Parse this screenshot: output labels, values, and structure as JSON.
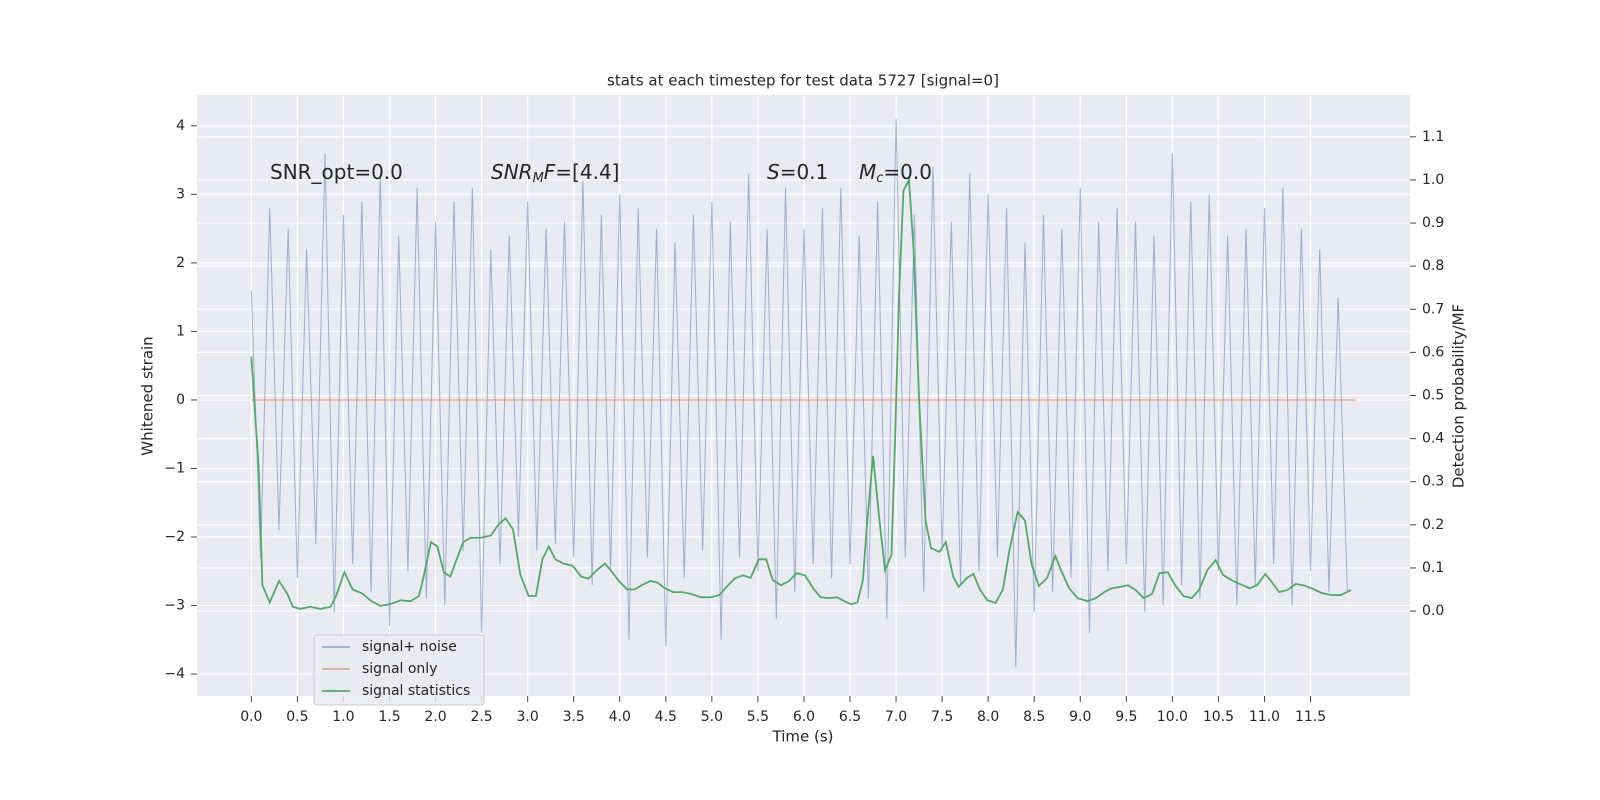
{
  "chart_data": {
    "type": "line",
    "title": "stats at each timestep for test data 5727 [signal=0]",
    "xlabel": "Time (s)",
    "ylabel": "Whitened strain",
    "y2label": "Detection probability/MF",
    "xlim": [
      -0.59,
      12.58
    ],
    "ylim": [
      -4.32,
      4.45
    ],
    "y2lim": [
      -0.197,
      1.197
    ],
    "xticks": [
      {
        "value": 0,
        "label": "0.0"
      },
      0.5,
      {
        "value": 1,
        "label": "1.0"
      },
      1.5,
      {
        "value": 2,
        "label": "2.0"
      },
      2.5,
      {
        "value": 3,
        "label": "3.0"
      },
      3.5,
      {
        "value": 4,
        "label": "4.0"
      },
      4.5,
      {
        "value": 5,
        "label": "5.0"
      },
      5.5,
      {
        "value": 6,
        "label": "6.0"
      },
      6.5,
      {
        "value": 7,
        "label": "7.0"
      },
      7.5,
      {
        "value": 8,
        "label": "8.0"
      },
      8.5,
      {
        "value": 9,
        "label": "9.0"
      },
      9.5,
      {
        "value": 10,
        "label": "10.0"
      },
      10.5,
      {
        "value": 11,
        "label": "11.0"
      },
      11.5
    ],
    "yticks": [
      {
        "value": -4,
        "label": "−4"
      },
      {
        "value": -3,
        "label": "−3"
      },
      {
        "value": -2,
        "label": "−2"
      },
      {
        "value": -1,
        "label": "−1"
      },
      0,
      1,
      2,
      3,
      4
    ],
    "y2ticks": [
      {
        "value": 0,
        "label": "0.0"
      },
      0.1,
      0.2,
      0.3,
      0.4,
      0.5,
      0.6,
      0.7,
      0.8,
      0.9,
      {
        "value": 1,
        "label": "1.0"
      },
      1.1
    ],
    "grid": true,
    "legend": "lower left",
    "annotations": [
      [
        "SNR_opt=0.0"
      ],
      [
        "SNR",
        "M",
        "F",
        "=[4.4]"
      ],
      [
        "S",
        "=0.1"
      ],
      [
        "M",
        "c",
        "=0.0"
      ]
    ],
    "series": [
      {
        "name": "signal+ noise",
        "color": "#4c72b0",
        "x": [
          0.0,
          0.1,
          0.2,
          0.3,
          0.4,
          0.5,
          0.6,
          0.7,
          0.8,
          0.9,
          1.0,
          1.1,
          1.2,
          1.3,
          1.4,
          1.5,
          1.6,
          1.7,
          1.8,
          1.9,
          2.0,
          2.1,
          2.2,
          2.3,
          2.4,
          2.5,
          2.6,
          2.7,
          2.8,
          2.9,
          3.0,
          3.1,
          3.2,
          3.3,
          3.4,
          3.5,
          3.6,
          3.7,
          3.8,
          3.9,
          4.0,
          4.1,
          4.2,
          4.3,
          4.4,
          4.5,
          4.6,
          4.7,
          4.8,
          4.9,
          5.0,
          5.1,
          5.2,
          5.3,
          5.4,
          5.5,
          5.6,
          5.7,
          5.8,
          5.9,
          6.0,
          6.1,
          6.2,
          6.3,
          6.4,
          6.5,
          6.6,
          6.7,
          6.8,
          6.9,
          7.0,
          7.1,
          7.2,
          7.3,
          7.4,
          7.5,
          7.6,
          7.7,
          7.8,
          7.9,
          8.0,
          8.1,
          8.2,
          8.3,
          8.4,
          8.5,
          8.6,
          8.7,
          8.8,
          8.9,
          9.0,
          9.1,
          9.2,
          9.3,
          9.4,
          9.5,
          9.6,
          9.7,
          9.8,
          9.9,
          10.0,
          10.1,
          10.2,
          10.3,
          10.4,
          10.5,
          10.6,
          10.7,
          10.8,
          10.9,
          11.0,
          11.1,
          11.2,
          11.3,
          11.4,
          11.5,
          11.6,
          11.7,
          11.8,
          11.9
        ],
        "values": [
          1.6,
          -2.3,
          2.8,
          -1.9,
          2.5,
          -2.6,
          2.2,
          -2.1,
          3.6,
          -3.1,
          2.7,
          -2.4,
          2.9,
          -2.8,
          3.3,
          -3.3,
          2.4,
          -2.5,
          3.1,
          -2.9,
          2.6,
          -3.0,
          2.9,
          -2.2,
          3.1,
          -3.4,
          2.2,
          -2.4,
          2.4,
          -2.0,
          2.9,
          -2.2,
          2.5,
          -2.1,
          2.6,
          -2.3,
          3.2,
          -2.7,
          2.7,
          -2.5,
          3.0,
          -3.5,
          2.8,
          -2.3,
          2.5,
          -3.6,
          2.3,
          -2.6,
          2.7,
          -2.2,
          2.9,
          -3.5,
          2.6,
          -2.3,
          3.3,
          -2.5,
          2.5,
          -3.2,
          3.1,
          -2.8,
          2.5,
          -2.4,
          2.8,
          -2.6,
          3.1,
          -2.4,
          2.4,
          -2.9,
          2.9,
          -3.2,
          4.1,
          -2.3,
          2.7,
          -2.8,
          3.4,
          -2.2,
          2.6,
          -2.7,
          3.3,
          -2.5,
          3.0,
          -2.3,
          2.8,
          -3.9,
          2.3,
          -3.1,
          2.7,
          -2.8,
          2.5,
          -2.6,
          3.1,
          -3.4,
          2.6,
          -2.5,
          2.8,
          -2.4,
          2.6,
          -3.1,
          2.4,
          -3.0,
          3.6,
          -2.7,
          2.9,
          -2.9,
          3.0,
          -2.5,
          2.4,
          -3.0,
          2.5,
          -2.7,
          2.8,
          -2.4,
          3.1,
          -3.0,
          2.5,
          -2.5,
          2.2,
          -2.8,
          1.5,
          -2.8
        ]
      },
      {
        "name": "signal only",
        "color": "#dd8452",
        "x": [
          0.0,
          11.99
        ],
        "values": [
          0,
          0
        ]
      },
      {
        "name": "signal statistics",
        "color": "#55a868",
        "axis": "y2",
        "x": [
          0.0,
          0.08,
          0.12,
          0.2,
          0.3,
          0.39,
          0.45,
          0.53,
          0.64,
          0.75,
          0.86,
          0.92,
          1.01,
          1.1,
          1.21,
          1.29,
          1.4,
          1.51,
          1.62,
          1.73,
          1.82,
          1.86,
          1.95,
          2.02,
          2.09,
          2.16,
          2.23,
          2.3,
          2.38,
          2.49,
          2.6,
          2.68,
          2.76,
          2.84,
          2.92,
          3.01,
          3.09,
          3.16,
          3.23,
          3.3,
          3.39,
          3.49,
          3.58,
          3.66,
          3.75,
          3.84,
          3.9,
          3.99,
          4.08,
          4.16,
          4.24,
          4.33,
          4.41,
          4.49,
          4.58,
          4.68,
          4.77,
          4.88,
          4.99,
          5.08,
          5.16,
          5.25,
          5.34,
          5.42,
          5.51,
          5.59,
          5.66,
          5.75,
          5.84,
          5.92,
          6.01,
          6.1,
          6.18,
          6.27,
          6.36,
          6.42,
          6.51,
          6.58,
          6.64,
          6.68,
          6.75,
          6.82,
          6.88,
          6.95,
          6.99,
          7.03,
          7.08,
          7.14,
          7.19,
          7.25,
          7.32,
          7.38,
          7.47,
          7.54,
          7.62,
          7.68,
          7.77,
          7.84,
          7.91,
          7.99,
          8.08,
          8.16,
          8.23,
          8.32,
          8.4,
          8.47,
          8.55,
          8.64,
          8.73,
          8.79,
          8.88,
          8.97,
          9.08,
          9.17,
          9.26,
          9.34,
          9.43,
          9.52,
          9.6,
          9.69,
          9.78,
          9.86,
          9.95,
          10.03,
          10.12,
          10.21,
          10.29,
          10.38,
          10.47,
          10.55,
          10.64,
          10.73,
          10.84,
          10.92,
          11.01,
          11.08,
          11.16,
          11.25,
          11.34,
          11.42,
          11.51,
          11.62,
          11.73,
          11.83,
          11.94
        ],
        "values": [
          0.59,
          0.33,
          0.06,
          0.02,
          0.07,
          0.04,
          0.01,
          0.005,
          0.01,
          0.005,
          0.01,
          0.035,
          0.09,
          0.05,
          0.04,
          0.025,
          0.012,
          0.016,
          0.025,
          0.023,
          0.035,
          0.07,
          0.16,
          0.15,
          0.09,
          0.08,
          0.12,
          0.16,
          0.17,
          0.17,
          0.175,
          0.2,
          0.215,
          0.19,
          0.085,
          0.035,
          0.035,
          0.12,
          0.15,
          0.12,
          0.11,
          0.105,
          0.08,
          0.075,
          0.095,
          0.11,
          0.095,
          0.07,
          0.05,
          0.05,
          0.06,
          0.07,
          0.066,
          0.053,
          0.044,
          0.044,
          0.04,
          0.032,
          0.032,
          0.037,
          0.056,
          0.076,
          0.083,
          0.077,
          0.12,
          0.12,
          0.072,
          0.06,
          0.07,
          0.088,
          0.083,
          0.053,
          0.032,
          0.03,
          0.032,
          0.025,
          0.016,
          0.02,
          0.072,
          0.19,
          0.36,
          0.21,
          0.095,
          0.13,
          0.4,
          0.72,
          0.975,
          1.0,
          0.84,
          0.49,
          0.21,
          0.146,
          0.137,
          0.16,
          0.08,
          0.056,
          0.077,
          0.086,
          0.05,
          0.025,
          0.019,
          0.05,
          0.14,
          0.23,
          0.21,
          0.11,
          0.058,
          0.077,
          0.128,
          0.095,
          0.053,
          0.03,
          0.023,
          0.03,
          0.044,
          0.053,
          0.056,
          0.06,
          0.049,
          0.03,
          0.04,
          0.088,
          0.09,
          0.06,
          0.035,
          0.03,
          0.049,
          0.095,
          0.118,
          0.084,
          0.072,
          0.063,
          0.053,
          0.06,
          0.086,
          0.067,
          0.044,
          0.049,
          0.063,
          0.06,
          0.053,
          0.042,
          0.037,
          0.037,
          0.049
        ]
      }
    ]
  }
}
